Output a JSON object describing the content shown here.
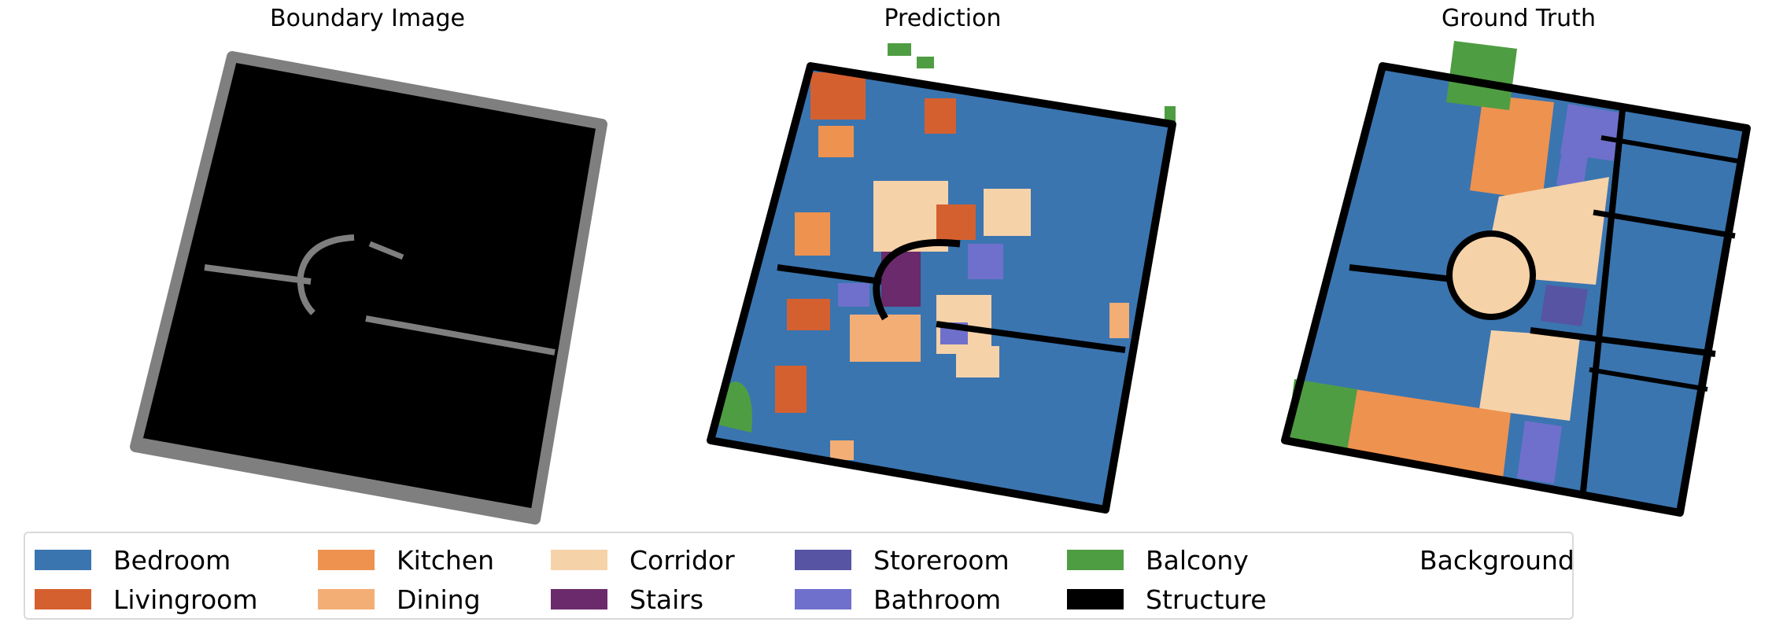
{
  "panels": {
    "boundary": {
      "title": "Boundary Image"
    },
    "prediction": {
      "title": "Prediction"
    },
    "ground_truth": {
      "title": "Ground Truth"
    }
  },
  "legend": [
    {
      "label": "Bedroom",
      "color": "#3a75b0"
    },
    {
      "label": "Livingroom",
      "color": "#d5602f"
    },
    {
      "label": "Kitchen",
      "color": "#ee924f"
    },
    {
      "label": "Dining",
      "color": "#f3ae76"
    },
    {
      "label": "Corridor",
      "color": "#f6d2a9"
    },
    {
      "label": "Stairs",
      "color": "#6a2a6b"
    },
    {
      "label": "Storeroom",
      "color": "#5754a3"
    },
    {
      "label": "Bathroom",
      "color": "#6f70cc"
    },
    {
      "label": "Balcony",
      "color": "#4f9d42"
    },
    {
      "label": "Structure",
      "color": "#000000"
    },
    {
      "label": "Background",
      "color": "#ffffff"
    }
  ]
}
